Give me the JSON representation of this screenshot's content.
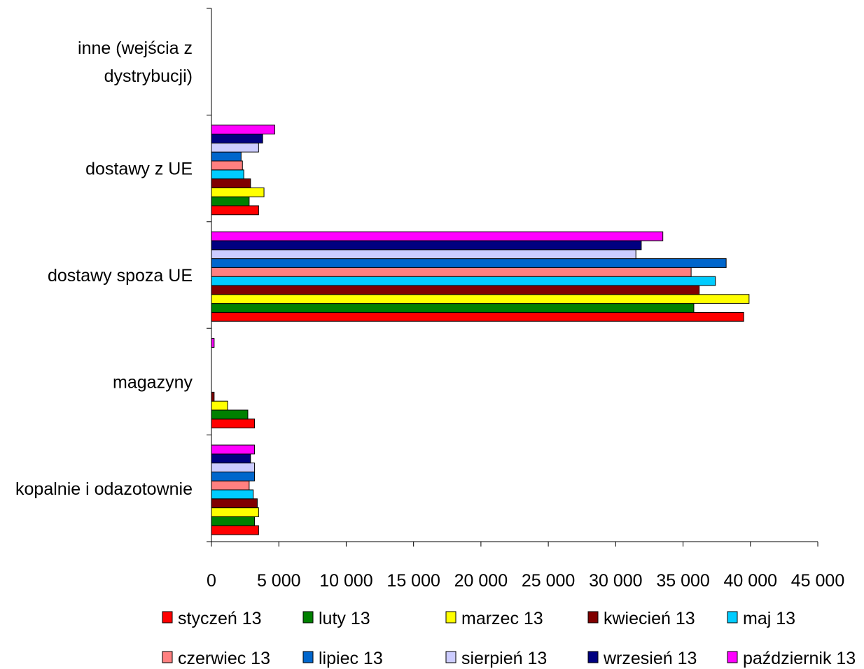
{
  "chart_data": {
    "type": "bar",
    "orientation": "horizontal",
    "categories": [
      [
        "kopalnie i odazotownie"
      ],
      [
        "magazyny"
      ],
      [
        "dostawy spoza UE"
      ],
      [
        "dostawy z UE"
      ],
      [
        "inne (wejścia z",
        "dystrybucji)"
      ]
    ],
    "xticks": [
      "0",
      "5 000",
      "10 000",
      "15 000",
      "20 000",
      "25 000",
      "30 000",
      "35 000",
      "40 000",
      "45 000"
    ],
    "xlim": [
      0,
      45000
    ],
    "grid": false,
    "legend_position": "bottom",
    "series": [
      {
        "name": "styczeń 13",
        "color": "#ff0000",
        "values": [
          3500,
          3200,
          39500,
          3500,
          0
        ]
      },
      {
        "name": "luty 13",
        "color": "#008000",
        "values": [
          3200,
          2700,
          35800,
          2800,
          0
        ]
      },
      {
        "name": "marzec 13",
        "color": "#ffff00",
        "values": [
          3500,
          1200,
          39900,
          3900,
          0
        ]
      },
      {
        "name": "kwiecień 13",
        "color": "#800000",
        "values": [
          3400,
          200,
          36200,
          2900,
          0
        ]
      },
      {
        "name": "maj 13",
        "color": "#00ccff",
        "values": [
          3100,
          0,
          37400,
          2400,
          0
        ]
      },
      {
        "name": "czerwiec 13",
        "color": "#ff8080",
        "values": [
          2800,
          0,
          35600,
          2300,
          0
        ]
      },
      {
        "name": "lipiec 13",
        "color": "#0066cc",
        "values": [
          3200,
          0,
          38200,
          2200,
          0
        ]
      },
      {
        "name": "sierpień 13",
        "color": "#ccccff",
        "values": [
          3200,
          0,
          31500,
          3500,
          0
        ]
      },
      {
        "name": "wrzesień 13",
        "color": "#000080",
        "values": [
          2900,
          0,
          31900,
          3800,
          0
        ]
      },
      {
        "name": "październik 13",
        "color": "#ff00ff",
        "values": [
          3200,
          200,
          33500,
          4700,
          0
        ]
      }
    ]
  }
}
